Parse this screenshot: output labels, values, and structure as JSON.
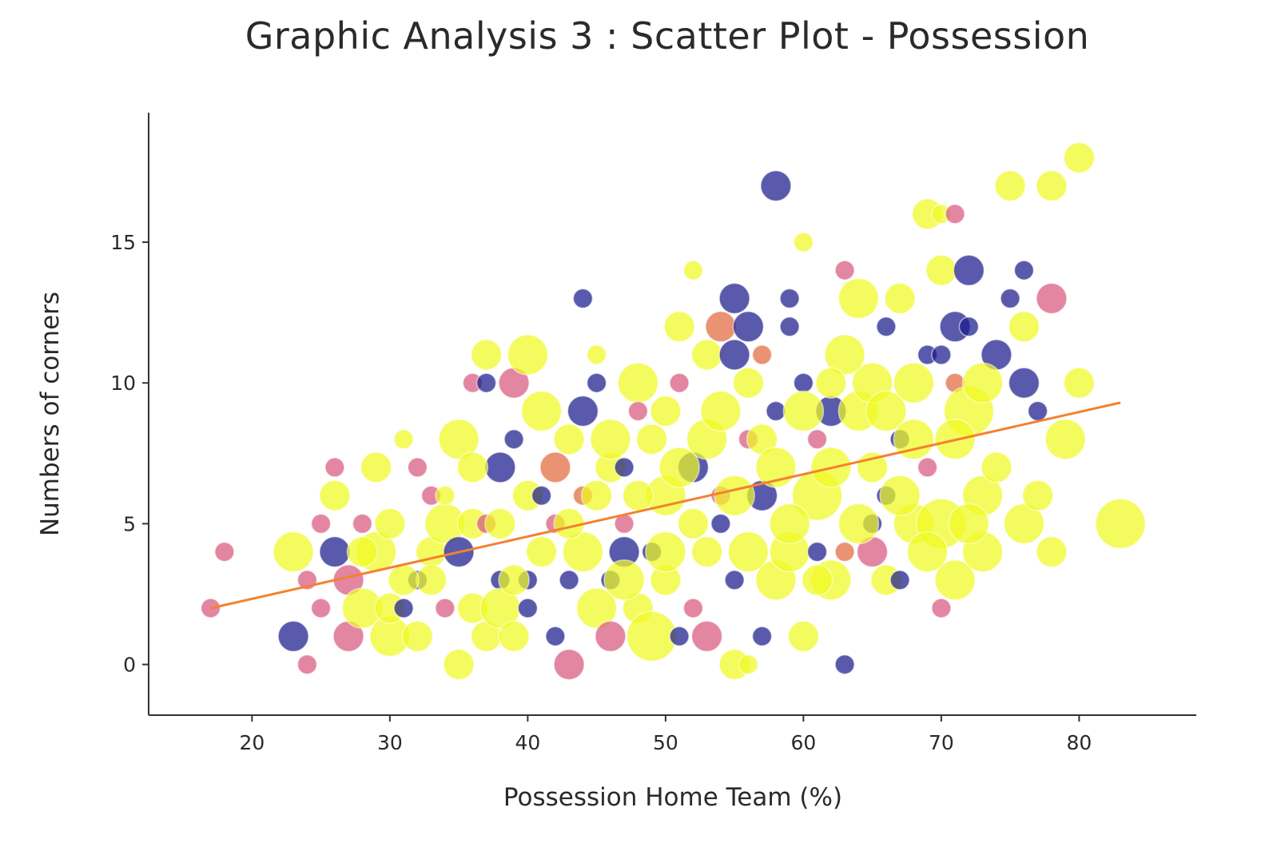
{
  "chart_data": {
    "type": "scatter",
    "title": "Graphic Analysis 3 : Scatter Plot - Possession",
    "xlabel": "Possession Home Team (%)",
    "ylabel": "Numbers of corners",
    "xlim": [
      12.5,
      88.5
    ],
    "ylim": [
      -1.8,
      19.6
    ],
    "x_ticks": [
      20,
      30,
      40,
      50,
      60,
      70,
      80
    ],
    "y_ticks": [
      0,
      5,
      10,
      15
    ],
    "grid": false,
    "legend": "none",
    "colors": {
      "yellow": "#f0f921",
      "pink": "#d8577e",
      "orange": "#e06a3c",
      "navy": "#1a1a8c",
      "trend": "#f48130",
      "axis": "#333333"
    },
    "trendline": {
      "x": [
        17,
        83
      ],
      "y": [
        2.0,
        9.3
      ]
    },
    "points": [
      {
        "x": 17,
        "y": 2,
        "c": "pink",
        "s": 1
      },
      {
        "x": 18,
        "y": 4,
        "c": "pink",
        "s": 1
      },
      {
        "x": 23,
        "y": 1,
        "c": "navy",
        "s": 2
      },
      {
        "x": 23,
        "y": 4,
        "c": "yellow",
        "s": 3
      },
      {
        "x": 24,
        "y": 0,
        "c": "pink",
        "s": 1
      },
      {
        "x": 24,
        "y": 3,
        "c": "pink",
        "s": 1
      },
      {
        "x": 25,
        "y": 5,
        "c": "pink",
        "s": 1
      },
      {
        "x": 25,
        "y": 2,
        "c": "pink",
        "s": 1
      },
      {
        "x": 26,
        "y": 4,
        "c": "navy",
        "s": 2
      },
      {
        "x": 26,
        "y": 7,
        "c": "pink",
        "s": 1
      },
      {
        "x": 26,
        "y": 6,
        "c": "yellow",
        "s": 2
      },
      {
        "x": 27,
        "y": 1,
        "c": "pink",
        "s": 2
      },
      {
        "x": 27,
        "y": 3,
        "c": "pink",
        "s": 2
      },
      {
        "x": 28,
        "y": 5,
        "c": "pink",
        "s": 1
      },
      {
        "x": 28,
        "y": 2,
        "c": "yellow",
        "s": 3
      },
      {
        "x": 29,
        "y": 7,
        "c": "yellow",
        "s": 2
      },
      {
        "x": 29,
        "y": 4,
        "c": "yellow",
        "s": 3
      },
      {
        "x": 30,
        "y": 1,
        "c": "yellow",
        "s": 3
      },
      {
        "x": 30,
        "y": 2,
        "c": "yellow",
        "s": 2
      },
      {
        "x": 31,
        "y": 8,
        "c": "yellow",
        "s": 1
      },
      {
        "x": 31,
        "y": 2,
        "c": "navy",
        "s": 1
      },
      {
        "x": 32,
        "y": 3,
        "c": "navy",
        "s": 1
      },
      {
        "x": 32,
        "y": 7,
        "c": "pink",
        "s": 1
      },
      {
        "x": 32,
        "y": 1,
        "c": "yellow",
        "s": 2
      },
      {
        "x": 33,
        "y": 6,
        "c": "pink",
        "s": 1
      },
      {
        "x": 33,
        "y": 4,
        "c": "yellow",
        "s": 2
      },
      {
        "x": 34,
        "y": 2,
        "c": "pink",
        "s": 1
      },
      {
        "x": 34,
        "y": 5,
        "c": "yellow",
        "s": 3
      },
      {
        "x": 35,
        "y": 0,
        "c": "yellow",
        "s": 2
      },
      {
        "x": 35,
        "y": 8,
        "c": "yellow",
        "s": 3
      },
      {
        "x": 35,
        "y": 4,
        "c": "navy",
        "s": 2
      },
      {
        "x": 36,
        "y": 5,
        "c": "yellow",
        "s": 2
      },
      {
        "x": 36,
        "y": 2,
        "c": "yellow",
        "s": 2
      },
      {
        "x": 36,
        "y": 10,
        "c": "pink",
        "s": 1
      },
      {
        "x": 37,
        "y": 10,
        "c": "navy",
        "s": 1
      },
      {
        "x": 37,
        "y": 11,
        "c": "yellow",
        "s": 2
      },
      {
        "x": 37,
        "y": 1,
        "c": "yellow",
        "s": 2
      },
      {
        "x": 37,
        "y": 5,
        "c": "pink",
        "s": 1
      },
      {
        "x": 38,
        "y": 7,
        "c": "navy",
        "s": 2
      },
      {
        "x": 38,
        "y": 3,
        "c": "navy",
        "s": 1
      },
      {
        "x": 38,
        "y": 2,
        "c": "yellow",
        "s": 3
      },
      {
        "x": 39,
        "y": 10,
        "c": "pink",
        "s": 2
      },
      {
        "x": 39,
        "y": 8,
        "c": "navy",
        "s": 1
      },
      {
        "x": 39,
        "y": 1,
        "c": "yellow",
        "s": 2
      },
      {
        "x": 40,
        "y": 11,
        "c": "yellow",
        "s": 3
      },
      {
        "x": 40,
        "y": 6,
        "c": "yellow",
        "s": 2
      },
      {
        "x": 40,
        "y": 3,
        "c": "navy",
        "s": 1
      },
      {
        "x": 40,
        "y": 2,
        "c": "navy",
        "s": 1
      },
      {
        "x": 41,
        "y": 9,
        "c": "yellow",
        "s": 3
      },
      {
        "x": 41,
        "y": 4,
        "c": "yellow",
        "s": 2
      },
      {
        "x": 42,
        "y": 7,
        "c": "orange",
        "s": 2
      },
      {
        "x": 42,
        "y": 1,
        "c": "navy",
        "s": 1
      },
      {
        "x": 42,
        "y": 5,
        "c": "pink",
        "s": 1
      },
      {
        "x": 43,
        "y": 0,
        "c": "pink",
        "s": 2
      },
      {
        "x": 43,
        "y": 3,
        "c": "navy",
        "s": 1
      },
      {
        "x": 43,
        "y": 8,
        "c": "yellow",
        "s": 2
      },
      {
        "x": 44,
        "y": 13,
        "c": "navy",
        "s": 1
      },
      {
        "x": 44,
        "y": 9,
        "c": "navy",
        "s": 2
      },
      {
        "x": 44,
        "y": 6,
        "c": "orange",
        "s": 1
      },
      {
        "x": 45,
        "y": 11,
        "c": "yellow",
        "s": 1
      },
      {
        "x": 45,
        "y": 10,
        "c": "navy",
        "s": 1
      },
      {
        "x": 45,
        "y": 2,
        "c": "yellow",
        "s": 3
      },
      {
        "x": 46,
        "y": 1,
        "c": "pink",
        "s": 2
      },
      {
        "x": 46,
        "y": 3,
        "c": "navy",
        "s": 1
      },
      {
        "x": 46,
        "y": 7,
        "c": "yellow",
        "s": 2
      },
      {
        "x": 47,
        "y": 4,
        "c": "navy",
        "s": 2
      },
      {
        "x": 47,
        "y": 7,
        "c": "navy",
        "s": 1
      },
      {
        "x": 47,
        "y": 5,
        "c": "pink",
        "s": 1
      },
      {
        "x": 48,
        "y": 10,
        "c": "yellow",
        "s": 3
      },
      {
        "x": 48,
        "y": 9,
        "c": "pink",
        "s": 1
      },
      {
        "x": 48,
        "y": 2,
        "c": "yellow",
        "s": 2
      },
      {
        "x": 49,
        "y": 1,
        "c": "yellow",
        "s": 4
      },
      {
        "x": 49,
        "y": 4,
        "c": "navy",
        "s": 1
      },
      {
        "x": 49,
        "y": 8,
        "c": "yellow",
        "s": 2
      },
      {
        "x": 50,
        "y": 6,
        "c": "yellow",
        "s": 3
      },
      {
        "x": 50,
        "y": 3,
        "c": "yellow",
        "s": 2
      },
      {
        "x": 51,
        "y": 12,
        "c": "yellow",
        "s": 2
      },
      {
        "x": 51,
        "y": 10,
        "c": "pink",
        "s": 1
      },
      {
        "x": 51,
        "y": 1,
        "c": "navy",
        "s": 1
      },
      {
        "x": 52,
        "y": 14,
        "c": "yellow",
        "s": 1
      },
      {
        "x": 52,
        "y": 7,
        "c": "navy",
        "s": 2
      },
      {
        "x": 52,
        "y": 2,
        "c": "pink",
        "s": 1
      },
      {
        "x": 53,
        "y": 11,
        "c": "yellow",
        "s": 2
      },
      {
        "x": 53,
        "y": 1,
        "c": "pink",
        "s": 2
      },
      {
        "x": 53,
        "y": 8,
        "c": "yellow",
        "s": 3
      },
      {
        "x": 54,
        "y": 12,
        "c": "orange",
        "s": 2
      },
      {
        "x": 54,
        "y": 6,
        "c": "pink",
        "s": 1
      },
      {
        "x": 54,
        "y": 5,
        "c": "navy",
        "s": 1
      },
      {
        "x": 55,
        "y": 13,
        "c": "navy",
        "s": 2
      },
      {
        "x": 55,
        "y": 11,
        "c": "navy",
        "s": 2
      },
      {
        "x": 55,
        "y": 0,
        "c": "yellow",
        "s": 2
      },
      {
        "x": 55,
        "y": 3,
        "c": "navy",
        "s": 1
      },
      {
        "x": 56,
        "y": 12,
        "c": "navy",
        "s": 2
      },
      {
        "x": 56,
        "y": 0,
        "c": "yellow",
        "s": 1
      },
      {
        "x": 56,
        "y": 8,
        "c": "pink",
        "s": 1
      },
      {
        "x": 57,
        "y": 11,
        "c": "orange",
        "s": 1
      },
      {
        "x": 57,
        "y": 6,
        "c": "navy",
        "s": 2
      },
      {
        "x": 57,
        "y": 1,
        "c": "navy",
        "s": 1
      },
      {
        "x": 58,
        "y": 17,
        "c": "navy",
        "s": 2
      },
      {
        "x": 58,
        "y": 9,
        "c": "navy",
        "s": 1
      },
      {
        "x": 58,
        "y": 3,
        "c": "yellow",
        "s": 3
      },
      {
        "x": 59,
        "y": 12,
        "c": "navy",
        "s": 1
      },
      {
        "x": 59,
        "y": 13,
        "c": "navy",
        "s": 1
      },
      {
        "x": 59,
        "y": 4,
        "c": "yellow",
        "s": 3
      },
      {
        "x": 60,
        "y": 15,
        "c": "yellow",
        "s": 1
      },
      {
        "x": 60,
        "y": 10,
        "c": "navy",
        "s": 1
      },
      {
        "x": 60,
        "y": 1,
        "c": "yellow",
        "s": 2
      },
      {
        "x": 61,
        "y": 6,
        "c": "yellow",
        "s": 4
      },
      {
        "x": 61,
        "y": 4,
        "c": "navy",
        "s": 1
      },
      {
        "x": 61,
        "y": 8,
        "c": "pink",
        "s": 1
      },
      {
        "x": 62,
        "y": 9,
        "c": "navy",
        "s": 2
      },
      {
        "x": 62,
        "y": 3,
        "c": "yellow",
        "s": 3
      },
      {
        "x": 63,
        "y": 14,
        "c": "pink",
        "s": 1
      },
      {
        "x": 63,
        "y": 0,
        "c": "navy",
        "s": 1
      },
      {
        "x": 63,
        "y": 4,
        "c": "orange",
        "s": 1
      },
      {
        "x": 64,
        "y": 13,
        "c": "yellow",
        "s": 3
      },
      {
        "x": 64,
        "y": 9,
        "c": "yellow",
        "s": 3
      },
      {
        "x": 65,
        "y": 4,
        "c": "pink",
        "s": 2
      },
      {
        "x": 65,
        "y": 5,
        "c": "navy",
        "s": 1
      },
      {
        "x": 65,
        "y": 10,
        "c": "yellow",
        "s": 3
      },
      {
        "x": 66,
        "y": 12,
        "c": "navy",
        "s": 1
      },
      {
        "x": 66,
        "y": 6,
        "c": "navy",
        "s": 1
      },
      {
        "x": 66,
        "y": 3,
        "c": "yellow",
        "s": 2
      },
      {
        "x": 67,
        "y": 13,
        "c": "yellow",
        "s": 2
      },
      {
        "x": 67,
        "y": 8,
        "c": "navy",
        "s": 1
      },
      {
        "x": 67,
        "y": 3,
        "c": "navy",
        "s": 1
      },
      {
        "x": 68,
        "y": 10,
        "c": "yellow",
        "s": 3
      },
      {
        "x": 68,
        "y": 5,
        "c": "yellow",
        "s": 3
      },
      {
        "x": 69,
        "y": 16,
        "c": "yellow",
        "s": 2
      },
      {
        "x": 69,
        "y": 11,
        "c": "navy",
        "s": 1
      },
      {
        "x": 69,
        "y": 7,
        "c": "pink",
        "s": 1
      },
      {
        "x": 70,
        "y": 16,
        "c": "yellow",
        "s": 1
      },
      {
        "x": 70,
        "y": 14,
        "c": "yellow",
        "s": 2
      },
      {
        "x": 70,
        "y": 2,
        "c": "pink",
        "s": 1
      },
      {
        "x": 70,
        "y": 11,
        "c": "navy",
        "s": 1
      },
      {
        "x": 70,
        "y": 5,
        "c": "yellow",
        "s": 4
      },
      {
        "x": 71,
        "y": 16,
        "c": "pink",
        "s": 1
      },
      {
        "x": 71,
        "y": 12,
        "c": "navy",
        "s": 2
      },
      {
        "x": 71,
        "y": 10,
        "c": "orange",
        "s": 1
      },
      {
        "x": 71,
        "y": 3,
        "c": "yellow",
        "s": 3
      },
      {
        "x": 72,
        "y": 14,
        "c": "navy",
        "s": 2
      },
      {
        "x": 72,
        "y": 12,
        "c": "navy",
        "s": 1
      },
      {
        "x": 72,
        "y": 9,
        "c": "yellow",
        "s": 4
      },
      {
        "x": 73,
        "y": 6,
        "c": "yellow",
        "s": 3
      },
      {
        "x": 73,
        "y": 4,
        "c": "yellow",
        "s": 3
      },
      {
        "x": 74,
        "y": 11,
        "c": "navy",
        "s": 2
      },
      {
        "x": 75,
        "y": 17,
        "c": "yellow",
        "s": 2
      },
      {
        "x": 75,
        "y": 13,
        "c": "navy",
        "s": 1
      },
      {
        "x": 76,
        "y": 14,
        "c": "navy",
        "s": 1
      },
      {
        "x": 76,
        "y": 10,
        "c": "navy",
        "s": 2
      },
      {
        "x": 76,
        "y": 12,
        "c": "yellow",
        "s": 2
      },
      {
        "x": 76,
        "y": 5,
        "c": "yellow",
        "s": 3
      },
      {
        "x": 77,
        "y": 9,
        "c": "navy",
        "s": 1
      },
      {
        "x": 77,
        "y": 6,
        "c": "yellow",
        "s": 2
      },
      {
        "x": 78,
        "y": 17,
        "c": "yellow",
        "s": 2
      },
      {
        "x": 78,
        "y": 13,
        "c": "pink",
        "s": 2
      },
      {
        "x": 78,
        "y": 4,
        "c": "yellow",
        "s": 2
      },
      {
        "x": 79,
        "y": 8,
        "c": "yellow",
        "s": 3
      },
      {
        "x": 80,
        "y": 18,
        "c": "yellow",
        "s": 2
      },
      {
        "x": 80,
        "y": 10,
        "c": "yellow",
        "s": 2
      },
      {
        "x": 83,
        "y": 5,
        "c": "yellow",
        "s": 4
      },
      {
        "x": 30,
        "y": 5,
        "c": "yellow",
        "s": 2
      },
      {
        "x": 33,
        "y": 3,
        "c": "yellow",
        "s": 2
      },
      {
        "x": 34,
        "y": 6,
        "c": "yellow",
        "s": 1
      },
      {
        "x": 38,
        "y": 5,
        "c": "yellow",
        "s": 2
      },
      {
        "x": 41,
        "y": 6,
        "c": "navy",
        "s": 1
      },
      {
        "x": 44,
        "y": 4,
        "c": "yellow",
        "s": 3
      },
      {
        "x": 46,
        "y": 8,
        "c": "yellow",
        "s": 3
      },
      {
        "x": 48,
        "y": 6,
        "c": "yellow",
        "s": 2
      },
      {
        "x": 50,
        "y": 4,
        "c": "yellow",
        "s": 3
      },
      {
        "x": 52,
        "y": 5,
        "c": "yellow",
        "s": 2
      },
      {
        "x": 54,
        "y": 9,
        "c": "yellow",
        "s": 3
      },
      {
        "x": 56,
        "y": 4,
        "c": "yellow",
        "s": 3
      },
      {
        "x": 57,
        "y": 8,
        "c": "yellow",
        "s": 2
      },
      {
        "x": 58,
        "y": 7,
        "c": "yellow",
        "s": 3
      },
      {
        "x": 60,
        "y": 9,
        "c": "yellow",
        "s": 3
      },
      {
        "x": 62,
        "y": 7,
        "c": "yellow",
        "s": 3
      },
      {
        "x": 63,
        "y": 11,
        "c": "yellow",
        "s": 3
      },
      {
        "x": 64,
        "y": 5,
        "c": "yellow",
        "s": 3
      },
      {
        "x": 66,
        "y": 9,
        "c": "yellow",
        "s": 3
      },
      {
        "x": 67,
        "y": 6,
        "c": "yellow",
        "s": 3
      },
      {
        "x": 68,
        "y": 8,
        "c": "yellow",
        "s": 3
      },
      {
        "x": 69,
        "y": 4,
        "c": "yellow",
        "s": 3
      },
      {
        "x": 71,
        "y": 8,
        "c": "yellow",
        "s": 3
      },
      {
        "x": 72,
        "y": 5,
        "c": "yellow",
        "s": 3
      },
      {
        "x": 73,
        "y": 10,
        "c": "yellow",
        "s": 3
      },
      {
        "x": 74,
        "y": 7,
        "c": "yellow",
        "s": 2
      },
      {
        "x": 59,
        "y": 5,
        "c": "yellow",
        "s": 3
      },
      {
        "x": 53,
        "y": 4,
        "c": "yellow",
        "s": 2
      },
      {
        "x": 55,
        "y": 6,
        "c": "yellow",
        "s": 3
      },
      {
        "x": 45,
        "y": 6,
        "c": "yellow",
        "s": 2
      },
      {
        "x": 43,
        "y": 5,
        "c": "yellow",
        "s": 2
      },
      {
        "x": 39,
        "y": 3,
        "c": "yellow",
        "s": 2
      },
      {
        "x": 36,
        "y": 7,
        "c": "yellow",
        "s": 2
      },
      {
        "x": 31,
        "y": 3,
        "c": "yellow",
        "s": 2
      },
      {
        "x": 28,
        "y": 4,
        "c": "yellow",
        "s": 2
      },
      {
        "x": 47,
        "y": 3,
        "c": "yellow",
        "s": 3
      },
      {
        "x": 51,
        "y": 7,
        "c": "yellow",
        "s": 3
      },
      {
        "x": 61,
        "y": 3,
        "c": "yellow",
        "s": 2
      },
      {
        "x": 65,
        "y": 7,
        "c": "yellow",
        "s": 2
      },
      {
        "x": 62,
        "y": 10,
        "c": "yellow",
        "s": 2
      },
      {
        "x": 56,
        "y": 10,
        "c": "yellow",
        "s": 2
      },
      {
        "x": 50,
        "y": 9,
        "c": "yellow",
        "s": 2
      }
    ]
  }
}
